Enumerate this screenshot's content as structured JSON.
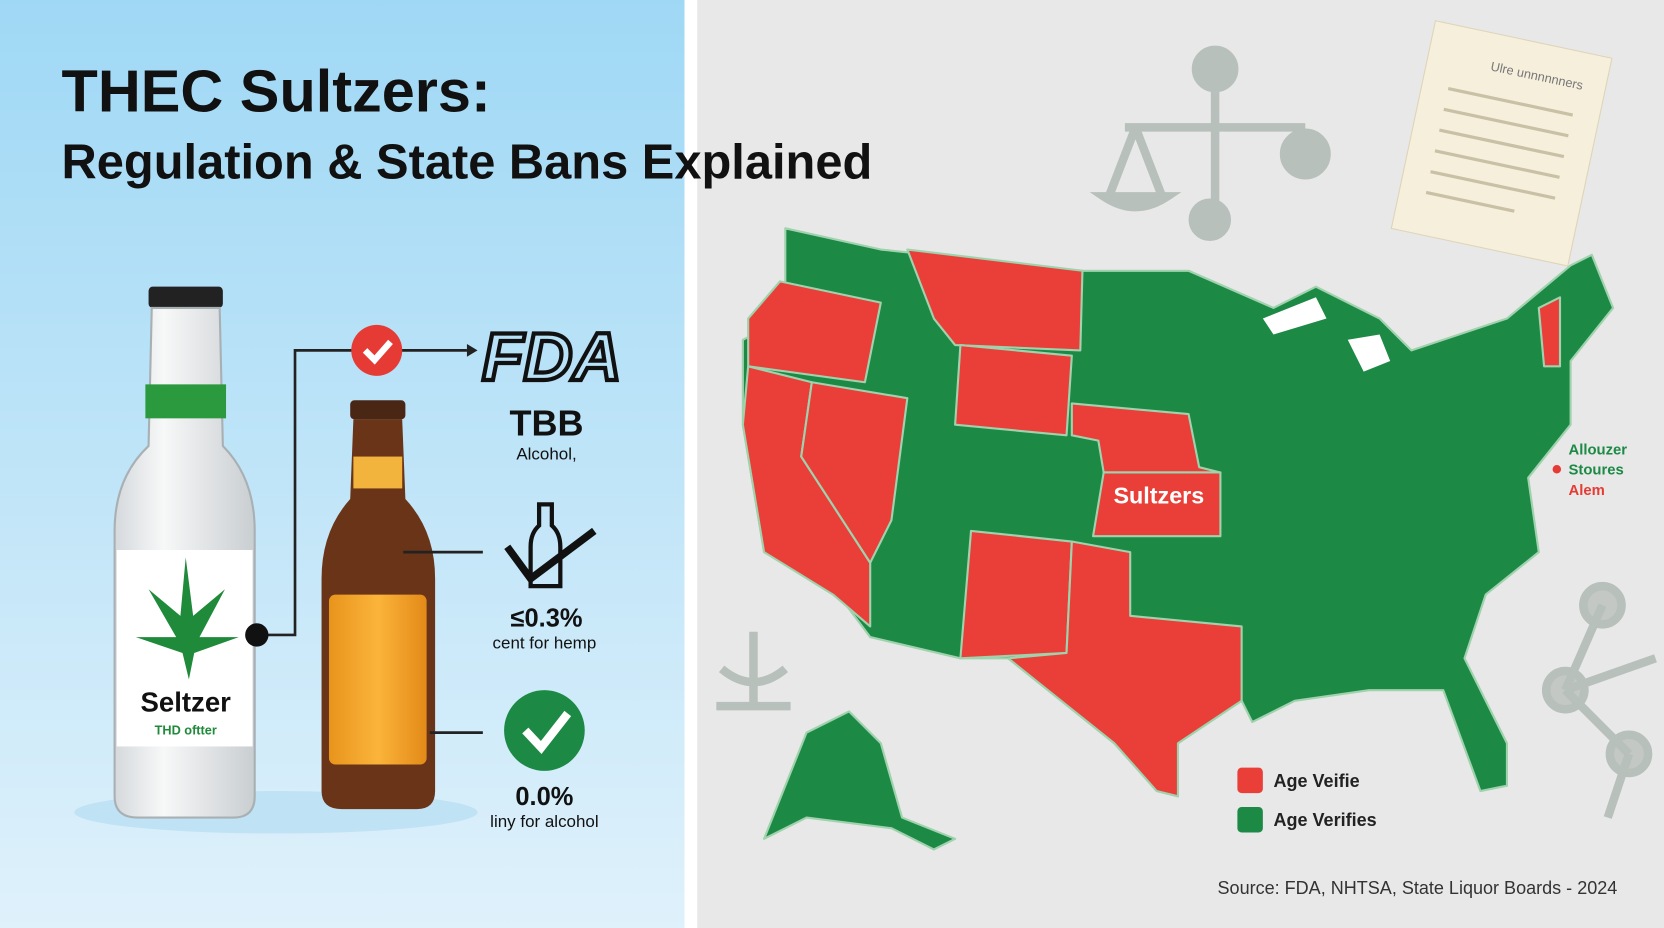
{
  "header": {
    "title": "THEC Sultzers:",
    "subtitle": "Regulation & State Bans Explained"
  },
  "left_panel": {
    "bottle_label": "Seltzer",
    "bottle_sublabel": "THD oftter",
    "logo": "FDA",
    "items": [
      {
        "title": "TBB",
        "text": "Alcohol,"
      },
      {
        "title": "≤0.3%",
        "text": "cent for hemp"
      },
      {
        "title": "0.0%",
        "text": "liny for alcohol"
      }
    ]
  },
  "map": {
    "center_label": "Sultzers",
    "side_note": [
      "Allouzer",
      "Stoures",
      "Alem"
    ],
    "paper_heading": "Ulre unnnnnners",
    "legend": [
      {
        "label": "Age Veifie",
        "color": "#ea3f38"
      },
      {
        "label": "Age Verifies",
        "color": "#1c8a45"
      }
    ]
  },
  "source": "Source: FDA, NHTSA, State Liquor Boards - 2024"
}
